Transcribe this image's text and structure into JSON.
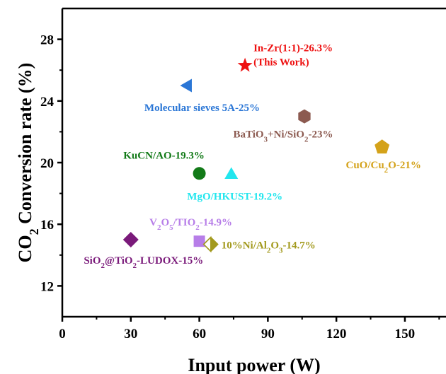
{
  "chart_data": {
    "type": "scatter",
    "title": "",
    "xlabel": "Input power (W)",
    "ylabel": {
      "pre": "CO",
      "sub": "2",
      "post": " Conversion rate (%)"
    },
    "xlim": [
      0,
      168
    ],
    "ylim": [
      10,
      30
    ],
    "xticks": [
      0,
      30,
      60,
      90,
      120,
      150
    ],
    "yticks": [
      12,
      16,
      20,
      24,
      28
    ],
    "grid": false,
    "legend": "none",
    "points": [
      {
        "key": "in-zr",
        "x": 80,
        "y": 26.3,
        "marker": "star",
        "color": "#ee1111",
        "label_lines": [
          [
            {
              "t": "In-Zr(1:1)-26.3%"
            }
          ],
          [
            {
              "t": "(This Work)"
            }
          ]
        ]
      },
      {
        "key": "molecular-sieves",
        "x": 55,
        "y": 25,
        "marker": "triangle-left",
        "color": "#2a76d6",
        "label_lines": [
          [
            {
              "t": "Molecular sieves 5A-25%"
            }
          ]
        ]
      },
      {
        "key": "batio3",
        "x": 106,
        "y": 23,
        "marker": "hexagon",
        "color": "#8c5a50",
        "label_lines": [
          [
            {
              "t": "BaTiO"
            },
            {
              "t": "3",
              "sub": true
            },
            {
              "t": "+Ni/SiO"
            },
            {
              "t": "2",
              "sub": true
            },
            {
              "t": "-23%"
            }
          ]
        ]
      },
      {
        "key": "cuo",
        "x": 140,
        "y": 21,
        "marker": "pentagon",
        "color": "#d4a21a",
        "label_lines": [
          [
            {
              "t": "CuO/Cu"
            },
            {
              "t": "2",
              "sub": true
            },
            {
              "t": "O-21%"
            }
          ]
        ]
      },
      {
        "key": "kucn",
        "x": 60,
        "y": 19.3,
        "marker": "circle",
        "color": "#127a18",
        "label_lines": [
          [
            {
              "t": "KuCN/AO-19.3%"
            }
          ]
        ]
      },
      {
        "key": "mgo",
        "x": 74,
        "y": 19.2,
        "marker": "triangle-up",
        "color": "#22e6ee",
        "label_lines": [
          [
            {
              "t": "MgO/HKUST-19.2%"
            }
          ]
        ]
      },
      {
        "key": "v2o5",
        "x": 60,
        "y": 14.9,
        "marker": "square",
        "color": "#b77ee8",
        "label_lines": [
          [
            {
              "t": "V"
            },
            {
              "t": "2",
              "sub": true
            },
            {
              "t": "O"
            },
            {
              "t": "5",
              "sub": true
            },
            {
              "t": "/TIO"
            },
            {
              "t": "2",
              "sub": true
            },
            {
              "t": "-14.9%"
            }
          ]
        ]
      },
      {
        "key": "ni-al2o3",
        "x": 65,
        "y": 14.7,
        "marker": "half-diamond",
        "color": "#a39a1e",
        "label_lines": [
          [
            {
              "t": "10%Ni/Al"
            },
            {
              "t": "2",
              "sub": true
            },
            {
              "t": "O"
            },
            {
              "t": "3",
              "sub": true
            },
            {
              "t": "-14.7%"
            }
          ]
        ]
      },
      {
        "key": "sio2",
        "x": 30,
        "y": 15,
        "marker": "diamond",
        "color": "#7a1a7a",
        "label_lines": [
          [
            {
              "t": "SiO"
            },
            {
              "t": "2",
              "sub": true
            },
            {
              "t": "@TiO"
            },
            {
              "t": "2",
              "sub": true
            },
            {
              "t": "-LUDOX-15%"
            }
          ]
        ]
      }
    ]
  }
}
